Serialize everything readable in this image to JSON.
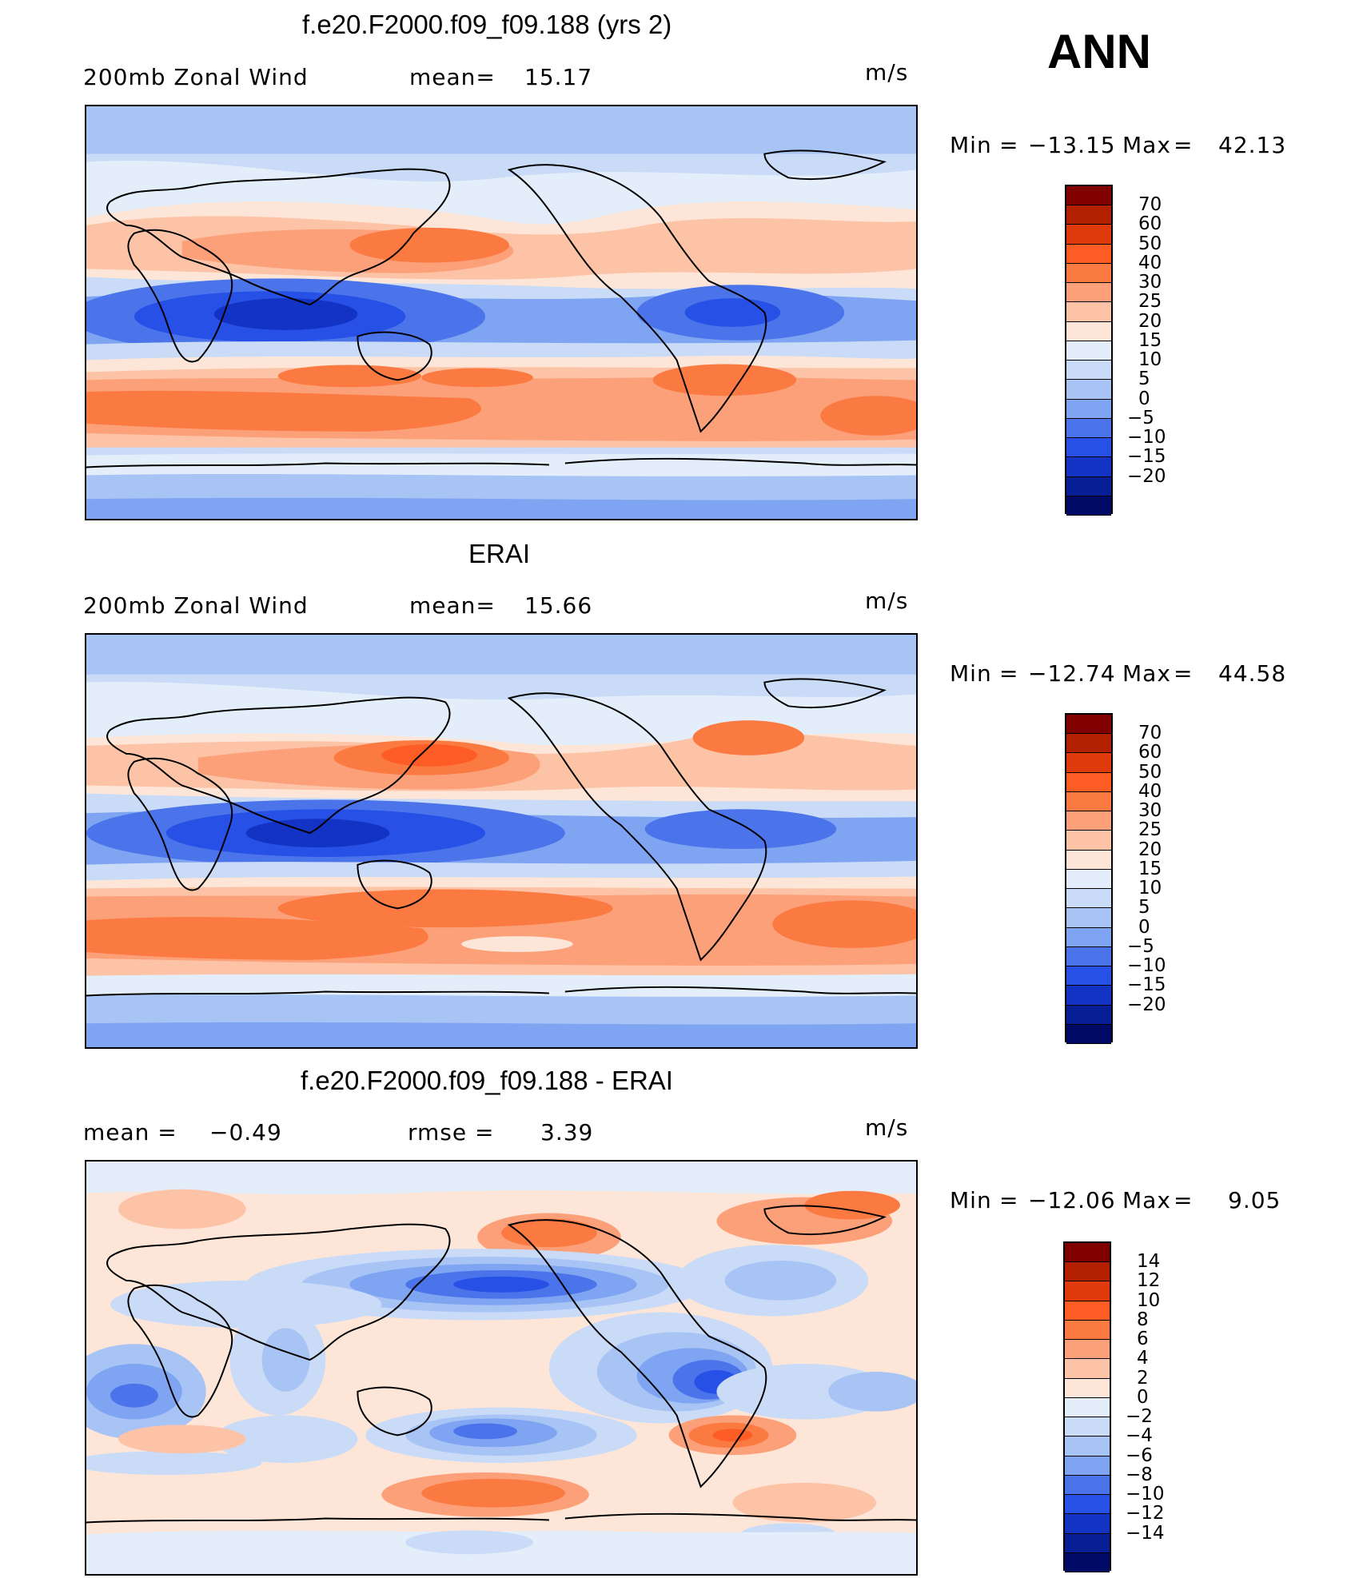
{
  "season": "ANN",
  "colors": {
    "abs_levels": [
      "#800000",
      "#b22000",
      "#de3a0c",
      "#fd5d24",
      "#fb7a42",
      "#fca07a",
      "#fcc3a7",
      "#fde6d8",
      "#e4eefa",
      "#c9dbf7",
      "#a8c4f5",
      "#7fa4f1",
      "#4b74ea",
      "#2650e6",
      "#1233c4",
      "#081e95",
      "#000a66"
    ],
    "diff_levels": [
      "#800000",
      "#b22000",
      "#de3a0c",
      "#fd5d24",
      "#fb7a42",
      "#fca07a",
      "#fcc3a7",
      "#fde6d8",
      "#e4eefa",
      "#c9dbf7",
      "#a8c4f5",
      "#7fa4f1",
      "#4b74ea",
      "#2650e6",
      "#1233c4",
      "#081e95",
      "#000a66"
    ]
  },
  "panels": [
    {
      "id": "model",
      "title": "f.e20.F2000.f09_f09.188 (yrs 2)",
      "variable": "200mb Zonal Wind",
      "stat1_label": "mean=",
      "stat1_value": "15.17",
      "units": "m/s",
      "min_label": "Min",
      "min_value": "−13.15",
      "max_label": "Max",
      "max_value": "42.13",
      "ticks": [
        "70",
        "60",
        "50",
        "40",
        "30",
        "25",
        "20",
        "15",
        "10",
        "5",
        "0",
        "−5",
        "−10",
        "−15",
        "−20"
      ]
    },
    {
      "id": "obs",
      "title": "ERAI",
      "variable": "200mb Zonal Wind",
      "stat1_label": "mean=",
      "stat1_value": "15.66",
      "units": "m/s",
      "min_label": "Min",
      "min_value": "−12.74",
      "max_label": "Max",
      "max_value": "44.58",
      "ticks": [
        "70",
        "60",
        "50",
        "40",
        "30",
        "25",
        "20",
        "15",
        "10",
        "5",
        "0",
        "−5",
        "−10",
        "−15",
        "−20"
      ]
    },
    {
      "id": "diff",
      "title": "f.e20.F2000.f09_f09.188 - ERAI",
      "stat1_label": "mean =",
      "stat1_value": "−0.49",
      "stat2_label": "rmse =",
      "stat2_value": "3.39",
      "units": "m/s",
      "min_label": "Min",
      "min_value": "−12.06",
      "max_label": "Max",
      "max_value": "9.05",
      "ticks": [
        "14",
        "12",
        "10",
        "8",
        "6",
        "4",
        "2",
        "0",
        "−2",
        "−4",
        "−6",
        "−8",
        "−10",
        "−12",
        "−14"
      ]
    }
  ]
}
